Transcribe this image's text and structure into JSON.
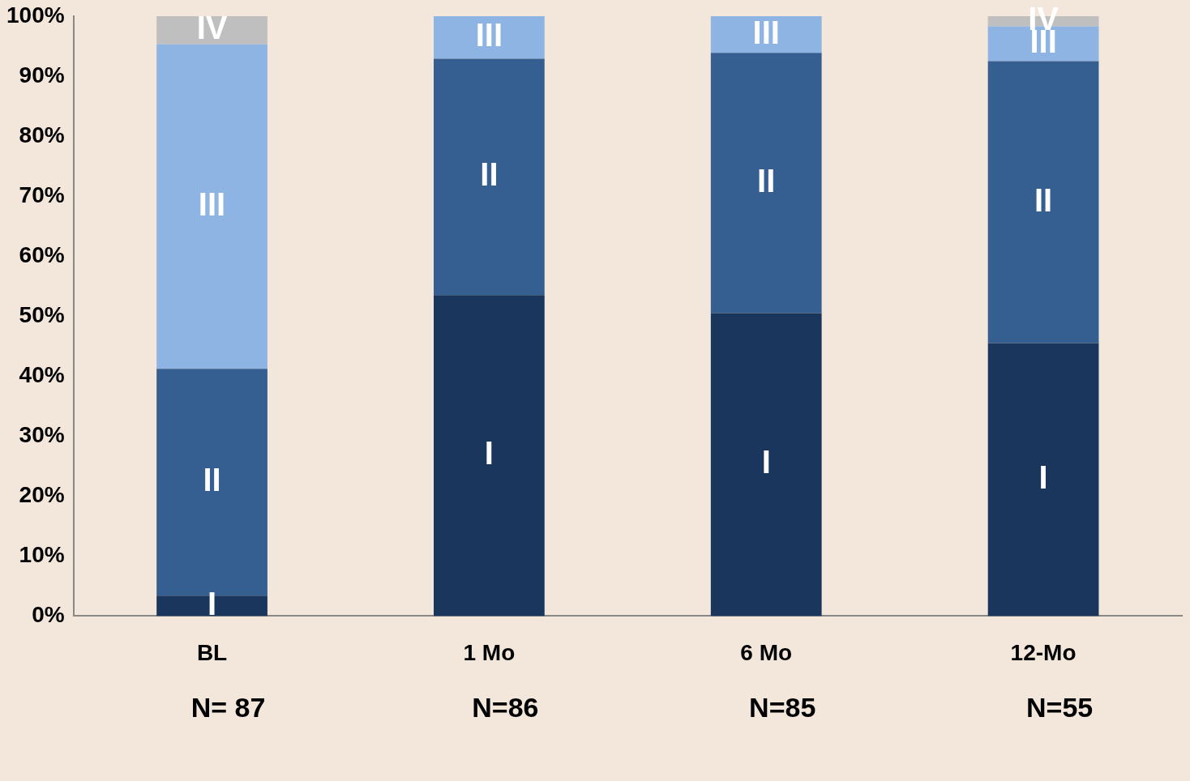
{
  "chart_data": {
    "type": "bar",
    "stacked": true,
    "legend": false,
    "grid": false,
    "categories": [
      "BL",
      "1 Mo",
      "6 Mo",
      "12-Mo"
    ],
    "series": [
      {
        "name": "I",
        "color": "#1a365d",
        "values": [
          3.4,
          53.5,
          50.5,
          45.5
        ]
      },
      {
        "name": "II",
        "color": "#365f91",
        "values": [
          37.8,
          39.4,
          43.4,
          47.0
        ]
      },
      {
        "name": "III",
        "color": "#8eb4e3",
        "values": [
          54.1,
          7.1,
          6.1,
          5.8
        ]
      },
      {
        "name": "IV",
        "color": "#bfbfbf",
        "values": [
          4.7,
          0,
          0,
          1.7
        ]
      }
    ],
    "ylim": [
      0,
      100
    ],
    "yticks": [
      {
        "value": 0,
        "label": "0%"
      },
      {
        "value": 10,
        "label": "10%"
      },
      {
        "value": 20,
        "label": "20%"
      },
      {
        "value": 30,
        "label": "30%"
      },
      {
        "value": 40,
        "label": "40%"
      },
      {
        "value": 50,
        "label": "50%"
      },
      {
        "value": 60,
        "label": "60%"
      },
      {
        "value": 70,
        "label": "70%"
      },
      {
        "value": 80,
        "label": "80%"
      },
      {
        "value": 90,
        "label": "90%"
      },
      {
        "value": 100,
        "label": "100%"
      }
    ],
    "annotations": [
      "N= 87",
      "N=86",
      "N=85",
      "N=55"
    ]
  }
}
